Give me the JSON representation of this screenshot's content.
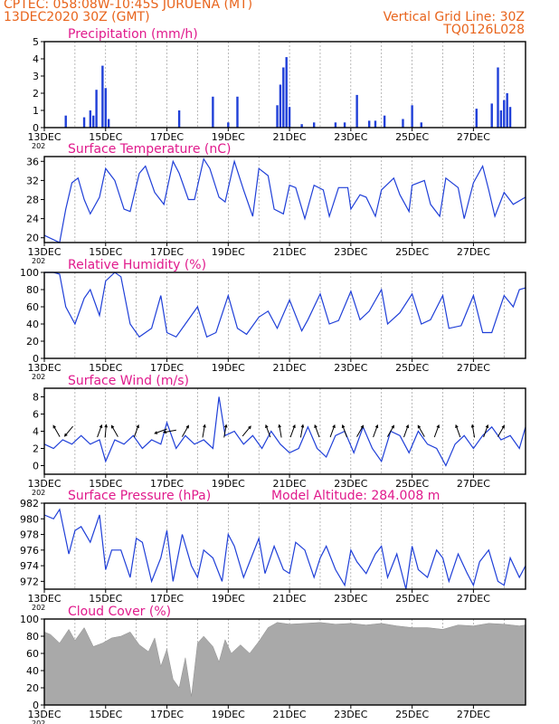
{
  "header": {
    "station_line": "CPTEC:   058:08W-10:45S  JURUENA (MT)",
    "run_line": "13DEC2020 30Z (GMT)",
    "grid_note": "Vertical Grid Line: 30Z",
    "code": "TQ0126L028",
    "model_altitude": "Model Altitude: 284.008 m"
  },
  "colors": {
    "series": "#1f3fd8",
    "title": "#e01a8c",
    "header": "#e8641c",
    "cloud": "#a9a9a9",
    "arrow": "#000000",
    "grid": "#8c8c8c"
  },
  "time_axis": {
    "tick_labels": [
      "13DEC",
      "15DEC",
      "17DEC",
      "19DEC",
      "21DEC",
      "23DEC",
      "25DEC",
      "27DEC"
    ],
    "year_stub": "202",
    "start_day": 13,
    "end_day": 28.7,
    "grid_every_days": 1
  },
  "chart_data": [
    {
      "type": "bar",
      "title": "Precipitation (mm/h)",
      "ylim": [
        0,
        5
      ],
      "yticks": [
        0,
        1,
        2,
        3,
        4,
        5
      ],
      "x": [
        13.7,
        14.3,
        14.5,
        14.6,
        14.7,
        14.9,
        15.0,
        15.1,
        17.4,
        18.5,
        19.0,
        19.3,
        20.6,
        20.7,
        20.8,
        20.9,
        21.0,
        21.4,
        21.8,
        22.5,
        22.8,
        23.2,
        23.6,
        23.8,
        24.1,
        24.7,
        25.0,
        25.3,
        27.1,
        27.6,
        27.8,
        27.9,
        28.0,
        28.1,
        28.2
      ],
      "values": [
        0.7,
        0.6,
        1.0,
        0.7,
        2.2,
        3.6,
        2.3,
        0.5,
        1.0,
        1.8,
        0.3,
        1.8,
        1.3,
        2.5,
        3.5,
        4.1,
        1.2,
        0.2,
        0.3,
        0.3,
        0.3,
        1.9,
        0.4,
        0.4,
        0.7,
        0.5,
        1.3,
        0.3,
        1.1,
        1.4,
        3.5,
        1.0,
        1.6,
        2.0,
        1.2
      ]
    },
    {
      "type": "line",
      "title": "Surface Temperature (nC)",
      "ylim": [
        19,
        37
      ],
      "yticks": [
        20,
        24,
        28,
        32,
        36
      ],
      "x": [
        13.0,
        13.5,
        13.7,
        13.9,
        14.1,
        14.3,
        14.5,
        14.8,
        15.0,
        15.3,
        15.6,
        15.8,
        16.1,
        16.3,
        16.6,
        16.9,
        17.2,
        17.4,
        17.7,
        17.9,
        18.2,
        18.4,
        18.7,
        18.9,
        19.2,
        19.5,
        19.8,
        20.0,
        20.3,
        20.5,
        20.8,
        21.0,
        21.2,
        21.5,
        21.8,
        22.1,
        22.3,
        22.6,
        22.9,
        23.0,
        23.3,
        23.5,
        23.8,
        24.0,
        24.4,
        24.6,
        24.9,
        25.0,
        25.4,
        25.6,
        25.9,
        26.1,
        26.5,
        26.7,
        27.0,
        27.3,
        27.5,
        27.7,
        28.0,
        28.3,
        28.7
      ],
      "values": [
        20.5,
        19.0,
        26.0,
        31.5,
        32.5,
        28.0,
        25.0,
        28.5,
        34.5,
        32.0,
        26.0,
        25.5,
        33.5,
        35.0,
        29.5,
        27.0,
        36.0,
        33.5,
        28.0,
        28.0,
        36.5,
        34.5,
        28.5,
        27.5,
        36.0,
        30.0,
        24.5,
        34.5,
        33.0,
        26.0,
        25.0,
        31.0,
        30.5,
        24.0,
        31.0,
        30.0,
        24.5,
        30.5,
        30.5,
        26.0,
        29.0,
        28.5,
        24.5,
        30.0,
        32.5,
        29.0,
        25.5,
        31.0,
        32.0,
        27.0,
        24.5,
        32.5,
        30.5,
        24.0,
        31.5,
        35.0,
        30.0,
        24.5,
        29.5,
        27.0,
        28.5
      ]
    },
    {
      "type": "line",
      "title": "Relative Humidity (%)",
      "ylim": [
        0,
        100
      ],
      "yticks": [
        0,
        20,
        40,
        60,
        80,
        100
      ],
      "x": [
        13.0,
        13.3,
        13.5,
        13.7,
        14.0,
        14.3,
        14.5,
        14.8,
        15.0,
        15.3,
        15.5,
        15.8,
        16.1,
        16.5,
        16.8,
        17.0,
        17.3,
        17.6,
        18.0,
        18.3,
        18.6,
        19.0,
        19.3,
        19.6,
        20.0,
        20.3,
        20.6,
        21.0,
        21.4,
        21.6,
        22.0,
        22.3,
        22.6,
        23.0,
        23.3,
        23.6,
        24.0,
        24.2,
        24.6,
        25.0,
        25.3,
        25.6,
        26.0,
        26.2,
        26.6,
        27.0,
        27.3,
        27.6,
        28.0,
        28.3,
        28.5,
        28.7
      ],
      "values": [
        100,
        100,
        98,
        60,
        40,
        70,
        80,
        50,
        90,
        100,
        95,
        40,
        25,
        35,
        73,
        30,
        25,
        40,
        60,
        25,
        30,
        73,
        35,
        28,
        48,
        55,
        35,
        68,
        32,
        45,
        75,
        40,
        44,
        78,
        45,
        55,
        80,
        40,
        53,
        75,
        40,
        45,
        73,
        35,
        38,
        73,
        30,
        30,
        73,
        60,
        80,
        82
      ]
    },
    {
      "type": "line",
      "title": "Surface Wind (m/s)",
      "ylim": [
        -1,
        9
      ],
      "yticks": [
        0,
        2,
        4,
        6,
        8
      ],
      "x": [
        13.0,
        13.3,
        13.6,
        13.9,
        14.2,
        14.5,
        14.8,
        15.0,
        15.3,
        15.6,
        15.9,
        16.2,
        16.5,
        16.8,
        17.0,
        17.3,
        17.6,
        17.9,
        18.2,
        18.5,
        18.7,
        18.9,
        19.2,
        19.5,
        19.8,
        20.1,
        20.4,
        20.7,
        21.0,
        21.3,
        21.6,
        21.9,
        22.2,
        22.5,
        22.8,
        23.1,
        23.4,
        23.7,
        24.0,
        24.3,
        24.6,
        24.9,
        25.2,
        25.5,
        25.8,
        26.1,
        26.4,
        26.7,
        27.0,
        27.3,
        27.6,
        27.9,
        28.2,
        28.5,
        28.7
      ],
      "values": [
        2.5,
        2.0,
        3.0,
        2.5,
        3.5,
        2.5,
        3.0,
        0.5,
        3.0,
        2.5,
        3.5,
        2.0,
        3.0,
        2.5,
        5.0,
        2.0,
        3.5,
        2.5,
        3.0,
        2.0,
        8.0,
        3.5,
        4.0,
        2.5,
        3.5,
        2.0,
        4.0,
        2.5,
        1.5,
        2.0,
        4.5,
        2.0,
        1.0,
        3.5,
        4.0,
        1.5,
        4.5,
        2.0,
        0.5,
        4.0,
        3.5,
        1.5,
        4.0,
        2.5,
        2.0,
        0.0,
        2.5,
        3.5,
        2.0,
        3.5,
        4.5,
        3.0,
        3.5,
        2.0,
        4.5
      ],
      "arrows_x": [
        13.4,
        13.8,
        14.8,
        15.0,
        15.3,
        16.0,
        16.8,
        17.1,
        17.6,
        18.2,
        18.9,
        19.6,
        20.3,
        20.7,
        21.1,
        21.4,
        21.9,
        22.4,
        22.8,
        23.3,
        23.8,
        24.3,
        24.8,
        25.3,
        25.8,
        26.5,
        27.0,
        27.4,
        27.9
      ],
      "arrows_dir": [
        330,
        220,
        20,
        5,
        330,
        20,
        250,
        260,
        30,
        10,
        10,
        40,
        340,
        350,
        20,
        10,
        340,
        20,
        340,
        30,
        20,
        30,
        20,
        330,
        20,
        340,
        350,
        20,
        30
      ]
    },
    {
      "type": "line",
      "title": "Surface Pressure (hPa)",
      "ylim": [
        971,
        982
      ],
      "yticks": [
        972,
        974,
        976,
        978,
        980,
        982
      ],
      "x": [
        13.0,
        13.3,
        13.5,
        13.8,
        14.0,
        14.2,
        14.5,
        14.8,
        15.0,
        15.2,
        15.5,
        15.8,
        16.0,
        16.2,
        16.5,
        16.8,
        17.0,
        17.2,
        17.5,
        17.8,
        18.0,
        18.2,
        18.5,
        18.8,
        19.0,
        19.2,
        19.5,
        19.8,
        20.0,
        20.2,
        20.5,
        20.8,
        21.0,
        21.2,
        21.5,
        21.8,
        22.0,
        22.2,
        22.5,
        22.8,
        23.0,
        23.2,
        23.5,
        23.8,
        24.0,
        24.2,
        24.5,
        24.8,
        25.0,
        25.2,
        25.5,
        25.8,
        26.0,
        26.2,
        26.5,
        26.8,
        27.0,
        27.2,
        27.5,
        27.8,
        28.0,
        28.2,
        28.5,
        28.7
      ],
      "values": [
        980.5,
        980.0,
        981.2,
        975.5,
        978.5,
        979.0,
        977.0,
        980.5,
        973.5,
        976.0,
        976.0,
        972.5,
        977.5,
        977.0,
        972.0,
        975.0,
        978.5,
        972.0,
        978.0,
        974.0,
        972.5,
        976.0,
        975.0,
        972.0,
        978.0,
        976.5,
        972.5,
        975.5,
        977.5,
        973.0,
        976.5,
        973.5,
        973.0,
        977.0,
        976.0,
        972.5,
        975.0,
        976.5,
        973.5,
        971.5,
        976.0,
        974.5,
        973.0,
        975.5,
        976.5,
        972.5,
        975.5,
        971.0,
        976.5,
        973.5,
        972.5,
        976.0,
        975.0,
        972.0,
        975.5,
        973.0,
        971.5,
        974.5,
        976.0,
        972.0,
        971.5,
        975.0,
        972.5,
        974.0
      ]
    },
    {
      "type": "area",
      "title": "Cloud Cover (%)",
      "ylim": [
        0,
        100
      ],
      "yticks": [
        0,
        20,
        40,
        60,
        80,
        100
      ],
      "x": [
        13.0,
        13.2,
        13.5,
        13.8,
        14.0,
        14.3,
        14.6,
        14.9,
        15.2,
        15.5,
        15.8,
        16.1,
        16.4,
        16.6,
        16.8,
        17.0,
        17.2,
        17.4,
        17.6,
        17.8,
        18.0,
        18.2,
        18.5,
        18.7,
        18.9,
        19.1,
        19.4,
        19.7,
        20.0,
        20.3,
        20.6,
        21.0,
        21.5,
        22.0,
        22.5,
        23.0,
        23.5,
        24.0,
        24.5,
        25.0,
        25.5,
        26.0,
        26.5,
        27.0,
        27.5,
        28.0,
        28.5,
        28.7
      ],
      "values": [
        85,
        82,
        72,
        88,
        75,
        90,
        68,
        72,
        78,
        80,
        85,
        70,
        62,
        78,
        45,
        65,
        30,
        20,
        55,
        10,
        72,
        80,
        68,
        50,
        76,
        60,
        70,
        60,
        74,
        90,
        96,
        94,
        95,
        96,
        94,
        95,
        93,
        95,
        92,
        90,
        90,
        88,
        93,
        92,
        95,
        94,
        92,
        93
      ]
    }
  ]
}
